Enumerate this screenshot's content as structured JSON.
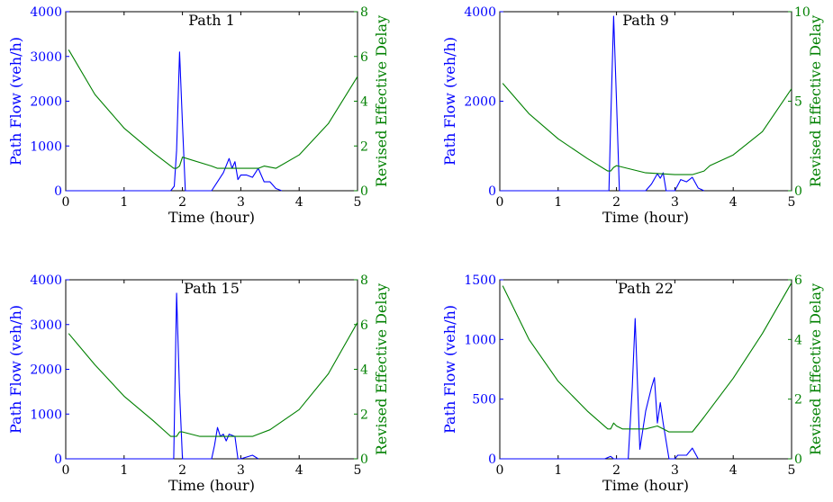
{
  "colors": {
    "flow": "#0000ff",
    "delay": "#008000",
    "axis": "#000000",
    "background": "#ffffff"
  },
  "chart_data": [
    {
      "type": "line",
      "title": "Path 1",
      "xlabel": "Time (hour)",
      "ylabel": "Path Flow (veh/h)",
      "ylabel_right": "Revised Effective Delay",
      "xlim": [
        0,
        5
      ],
      "ylim": [
        0,
        4000
      ],
      "ylim_right": [
        0,
        8
      ],
      "xticks": [
        0,
        1,
        2,
        3,
        4,
        5
      ],
      "yticks": [
        0,
        1000,
        2000,
        3000,
        4000
      ],
      "yticks_right": [
        0,
        2,
        4,
        6,
        8
      ],
      "grid": false,
      "series": [
        {
          "axis": "left",
          "x": [
            0,
            1.8,
            1.86,
            1.9,
            1.95,
            2.0,
            2.05,
            2.5,
            2.6,
            2.7,
            2.8,
            2.85,
            2.9,
            2.95,
            3.0,
            3.1,
            3.2,
            3.3,
            3.4,
            3.5,
            3.6,
            3.7
          ],
          "y": [
            0,
            0,
            100,
            900,
            3100,
            1500,
            0,
            0,
            200,
            400,
            720,
            500,
            650,
            250,
            350,
            350,
            300,
            500,
            200,
            200,
            50,
            0
          ]
        },
        {
          "axis": "right",
          "x": [
            0.05,
            0.5,
            1.0,
            1.5,
            1.85,
            1.9,
            1.95,
            2.0,
            2.5,
            2.6,
            3.0,
            3.3,
            3.4,
            3.6,
            4.0,
            4.5,
            5.0
          ],
          "y": [
            6.3,
            4.3,
            2.8,
            1.7,
            1.0,
            1.0,
            1.1,
            1.5,
            1.1,
            1.0,
            1.0,
            1.0,
            1.1,
            1.0,
            1.6,
            3.0,
            5.1
          ]
        }
      ]
    },
    {
      "type": "line",
      "title": "Path 9",
      "xlabel": "Time (hour)",
      "ylabel": "Path Flow (veh/h)",
      "ylabel_right": "Revised Effective Delay",
      "xlim": [
        0,
        5
      ],
      "ylim": [
        0,
        4000
      ],
      "ylim_right": [
        0,
        10
      ],
      "xticks": [
        0,
        1,
        2,
        3,
        4,
        5
      ],
      "yticks": [
        0,
        2000,
        4000
      ],
      "yticks_right": [
        0,
        5,
        10
      ],
      "grid": false,
      "series": [
        {
          "axis": "left",
          "x": [
            0,
            1.87,
            1.9,
            1.95,
            2.0,
            2.05,
            2.5,
            2.6,
            2.7,
            2.75,
            2.8,
            2.85,
            3.0,
            3.1,
            3.2,
            3.3,
            3.4,
            3.5
          ],
          "y": [
            0,
            0,
            1500,
            3900,
            2000,
            0,
            0,
            150,
            380,
            280,
            400,
            0,
            0,
            250,
            200,
            300,
            60,
            0
          ]
        },
        {
          "axis": "right",
          "x": [
            0.05,
            0.5,
            1.0,
            1.5,
            1.85,
            1.9,
            1.95,
            2.0,
            2.5,
            3.0,
            3.3,
            3.5,
            3.6,
            4.0,
            4.5,
            5.0
          ],
          "y": [
            6.0,
            4.3,
            2.9,
            1.8,
            1.1,
            1.1,
            1.3,
            1.4,
            1.0,
            0.9,
            0.9,
            1.1,
            1.4,
            2.0,
            3.3,
            5.7
          ]
        }
      ]
    },
    {
      "type": "line",
      "title": "Path 15",
      "xlabel": "Time (hour)",
      "ylabel": "Path Flow (veh/h)",
      "ylabel_right": "Revised Effective Delay",
      "xlim": [
        0,
        5
      ],
      "ylim": [
        0,
        4000
      ],
      "ylim_right": [
        0,
        8
      ],
      "xticks": [
        0,
        1,
        2,
        3,
        4,
        5
      ],
      "yticks": [
        0,
        1000,
        2000,
        3000,
        4000
      ],
      "yticks_right": [
        0,
        2,
        4,
        6,
        8
      ],
      "grid": false,
      "series": [
        {
          "axis": "left",
          "x": [
            0,
            1.85,
            1.9,
            1.95,
            2.0,
            2.5,
            2.55,
            2.6,
            2.65,
            2.7,
            2.75,
            2.8,
            2.9,
            2.95,
            3.0,
            3.1,
            3.2,
            3.3
          ],
          "y": [
            0,
            0,
            3700,
            1500,
            0,
            0,
            300,
            700,
            500,
            550,
            400,
            550,
            500,
            0,
            0,
            40,
            80,
            0
          ]
        },
        {
          "axis": "right",
          "x": [
            0.05,
            0.5,
            1.0,
            1.5,
            1.8,
            1.9,
            1.95,
            2.0,
            2.3,
            2.8,
            3.2,
            3.3,
            3.5,
            4.0,
            4.5,
            5.0
          ],
          "y": [
            5.6,
            4.2,
            2.8,
            1.7,
            1.0,
            1.0,
            1.2,
            1.2,
            1.0,
            1.0,
            1.0,
            1.1,
            1.3,
            2.2,
            3.8,
            6.1
          ]
        }
      ]
    },
    {
      "type": "line",
      "title": "Path 22",
      "xlabel": "Time (hour)",
      "ylabel": "Path Flow (veh/h)",
      "ylabel_right": "Revised Effective Delay",
      "xlim": [
        0,
        5
      ],
      "ylim": [
        0,
        1500
      ],
      "ylim_right": [
        0,
        6
      ],
      "xticks": [
        0,
        1,
        2,
        3,
        4,
        5
      ],
      "yticks": [
        0,
        500,
        1000,
        1500
      ],
      "yticks_right": [
        0,
        2,
        4,
        6
      ],
      "grid": false,
      "series": [
        {
          "axis": "left",
          "x": [
            0,
            1.8,
            1.9,
            1.95,
            2.2,
            2.27,
            2.32,
            2.4,
            2.5,
            2.6,
            2.65,
            2.7,
            2.75,
            2.8,
            2.9,
            3.0,
            3.05,
            3.2,
            3.3,
            3.4
          ],
          "y": [
            0,
            0,
            20,
            0,
            0,
            600,
            1175,
            80,
            400,
            600,
            680,
            300,
            470,
            300,
            0,
            0,
            30,
            30,
            90,
            0
          ]
        },
        {
          "axis": "right",
          "x": [
            0.05,
            0.5,
            1.0,
            1.5,
            1.85,
            1.9,
            1.95,
            2.0,
            2.1,
            2.2,
            2.5,
            2.7,
            2.8,
            2.9,
            3.0,
            3.3,
            3.5,
            4.0,
            4.5,
            5.0
          ],
          "y": [
            5.8,
            4.0,
            2.6,
            1.6,
            1.0,
            1.0,
            1.2,
            1.1,
            1.0,
            1.0,
            1.0,
            1.1,
            1.0,
            0.9,
            0.9,
            0.9,
            1.4,
            2.7,
            4.2,
            5.9
          ]
        }
      ]
    }
  ]
}
